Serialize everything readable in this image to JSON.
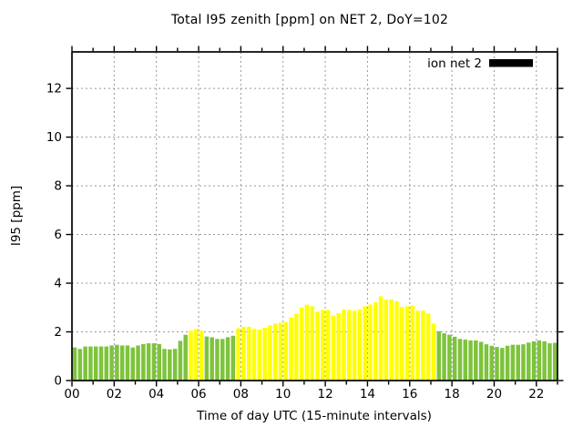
{
  "chart_data": {
    "type": "bar",
    "title": "Total I95 zenith [ppm] on NET 2, DoY=102",
    "xlabel": "Time of day UTC (15-minute intervals)",
    "ylabel": "I95 [ppm]",
    "xlim_hours": [
      0,
      23
    ],
    "ylim": [
      0,
      13.5
    ],
    "grid": true,
    "legend": {
      "label": "ion net 2",
      "swatch_color": "#000000",
      "position": "top-right"
    },
    "xticks": [
      {
        "h": 0,
        "label": "00"
      },
      {
        "h": 2,
        "label": "02"
      },
      {
        "h": 4,
        "label": "04"
      },
      {
        "h": 6,
        "label": "06"
      },
      {
        "h": 8,
        "label": "08"
      },
      {
        "h": 10,
        "label": "10"
      },
      {
        "h": 12,
        "label": "12"
      },
      {
        "h": 14,
        "label": "14"
      },
      {
        "h": 16,
        "label": "16"
      },
      {
        "h": 18,
        "label": "18"
      },
      {
        "h": 20,
        "label": "20"
      },
      {
        "h": 22,
        "label": "22"
      }
    ],
    "yticks": [
      {
        "v": 0,
        "label": "0"
      },
      {
        "v": 2,
        "label": "2"
      },
      {
        "v": 4,
        "label": "4"
      },
      {
        "v": 6,
        "label": "6"
      },
      {
        "v": 8,
        "label": "8"
      },
      {
        "v": 10,
        "label": "10"
      },
      {
        "v": 12,
        "label": "12"
      }
    ],
    "bar_colors": {
      "g": "#7dc33c",
      "y": "#ffff00"
    },
    "grid_color": "#989898",
    "time_start": "00:00",
    "time_end": "22:45",
    "interval_minutes": 15,
    "series": [
      {
        "name": "ion net 2",
        "values": [
          1.36,
          1.3,
          1.4,
          1.4,
          1.4,
          1.4,
          1.4,
          1.44,
          1.47,
          1.44,
          1.44,
          1.36,
          1.44,
          1.5,
          1.53,
          1.53,
          1.5,
          1.3,
          1.28,
          1.3,
          1.63,
          1.88,
          2.05,
          2.12,
          2.05,
          1.81,
          1.78,
          1.71,
          1.71,
          1.78,
          1.84,
          2.15,
          2.21,
          2.21,
          2.12,
          2.09,
          2.17,
          2.27,
          2.34,
          2.37,
          2.4,
          2.59,
          2.75,
          3.0,
          3.12,
          3.05,
          2.83,
          2.9,
          2.9,
          2.67,
          2.77,
          2.92,
          2.9,
          2.87,
          2.92,
          3.05,
          3.12,
          3.21,
          3.46,
          3.33,
          3.33,
          3.25,
          3.02,
          3.05,
          3.08,
          2.87,
          2.87,
          2.75,
          2.34,
          2.03,
          1.94,
          1.88,
          1.8,
          1.71,
          1.68,
          1.65,
          1.65,
          1.59,
          1.49,
          1.43,
          1.38,
          1.34,
          1.43,
          1.47,
          1.47,
          1.49,
          1.56,
          1.61,
          1.65,
          1.61,
          1.53,
          1.55
        ],
        "color_sequence": "ggggggggggggggggggggggyyyggggggyyyyyyyyyyyyyyyyyyyyyyyyyyyyyyyyyyyyyyggggggggggggggggggggggg"
      }
    ]
  }
}
